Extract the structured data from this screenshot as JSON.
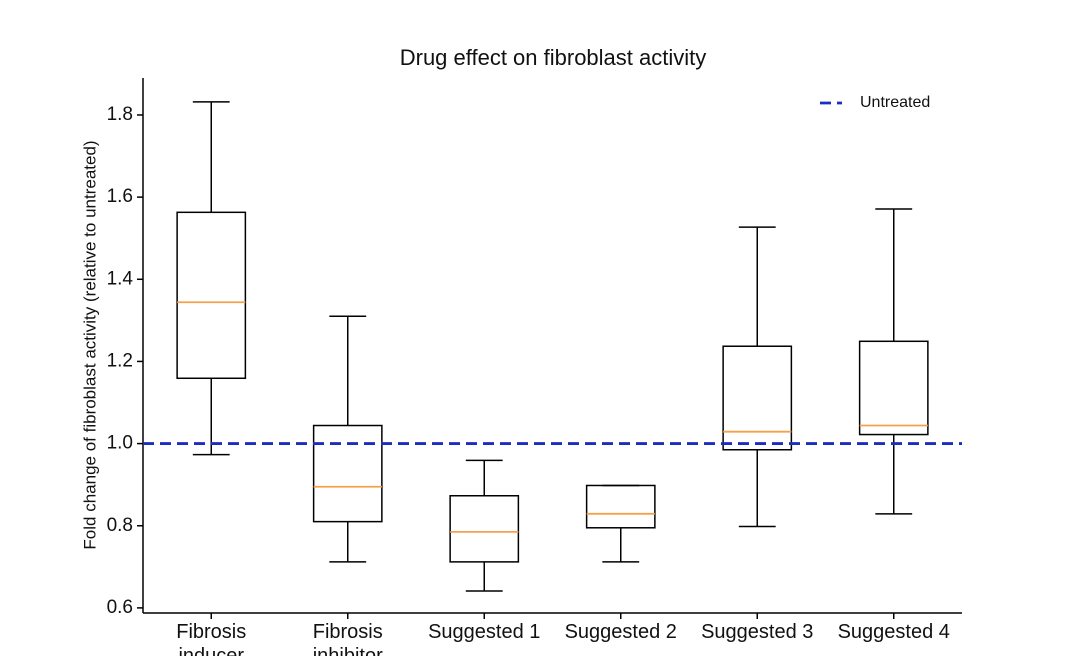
{
  "chart_data": {
    "type": "box",
    "title": "Drug effect on fibroblast activity",
    "y_label": "Fold change of fibroblast activity (relative to untreated)",
    "categories": [
      "Fibrosis inducer",
      "Fibrosis inhibitor",
      "Suggested 1",
      "Suggested 2",
      "Suggested 3",
      "Suggested 4"
    ],
    "boxes": [
      {
        "whislo": 0.973,
        "q1": 1.159,
        "med": 1.344,
        "q3": 1.563,
        "whishi": 1.832
      },
      {
        "whislo": 0.712,
        "q1": 0.81,
        "med": 0.895,
        "q3": 1.044,
        "whishi": 1.31
      },
      {
        "whislo": 0.641,
        "q1": 0.712,
        "med": 0.785,
        "q3": 0.873,
        "whishi": 0.959
      },
      {
        "whislo": 0.712,
        "q1": 0.795,
        "med": 0.829,
        "q3": 0.898,
        "whishi": 0.898
      },
      {
        "whislo": 0.798,
        "q1": 0.985,
        "med": 1.029,
        "q3": 1.237,
        "whishi": 1.527
      },
      {
        "whislo": 0.829,
        "q1": 1.022,
        "med": 1.044,
        "q3": 1.249,
        "whishi": 1.571
      }
    ],
    "box_color": "#000000",
    "median_color": "#f5a04a",
    "reference_lines": [
      {
        "value": 1,
        "label": "Untreated",
        "color": "#1c2ec0",
        "dashed": true
      }
    ],
    "legend": "upper right",
    "ylim": [
      0.59,
      1.89
    ],
    "yticks": [
      0.6,
      0.8,
      {
        "value": 1,
        "label": "1.0"
      },
      1.2,
      1.4,
      1.6,
      1.8
    ],
    "grid": false
  }
}
